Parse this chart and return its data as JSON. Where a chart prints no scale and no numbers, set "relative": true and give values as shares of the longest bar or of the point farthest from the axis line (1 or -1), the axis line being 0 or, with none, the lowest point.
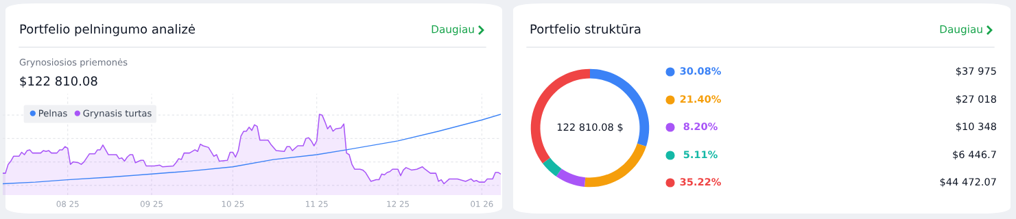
{
  "chart_data": [
    {
      "type": "line",
      "title": "Portfelio pelningumo analizė",
      "subtitle": "Grynosiosios priemonės",
      "annotations": [
        "$122 810.08",
        "Daugiau"
      ],
      "relative": true,
      "xlim": [
        "2025-07-08",
        "2026-01-08"
      ],
      "xticks": [
        {
          "value": "2025-08-01",
          "label": "08 25"
        },
        {
          "value": "2025-09-01",
          "label": "09 25"
        },
        {
          "value": "2025-10-01",
          "label": "10 25"
        },
        {
          "value": "2025-11-01",
          "label": "11 25"
        },
        {
          "value": "2025-12-01",
          "label": "12 25"
        },
        {
          "value": "2026-01-01",
          "label": "01 26"
        }
      ],
      "grid": true,
      "legend": "top left",
      "series": [
        {
          "name": "Pelnas",
          "color": "#3b82f6",
          "type": "line",
          "x": [
            "2025-07-08",
            "2025-07-20",
            "2025-08-01",
            "2025-08-16",
            "2025-09-01",
            "2025-09-16",
            "2025-10-01",
            "2025-10-16",
            "2025-11-01",
            "2025-11-12",
            "2025-12-01",
            "2025-12-16",
            "2026-01-01",
            "2026-01-08"
          ],
          "values": [
            0.14,
            0.16,
            0.19,
            0.22,
            0.26,
            0.3,
            0.35,
            0.44,
            0.5,
            0.56,
            0.67,
            0.79,
            0.93,
            1.0
          ]
        },
        {
          "name": "Grynasis turtas",
          "color": "#a855f7",
          "type": "area",
          "x": [
            "2025-07-08",
            "2025-07-09",
            "2025-07-10",
            "2025-07-11",
            "2025-07-12",
            "2025-07-14",
            "2025-07-15",
            "2025-07-16",
            "2025-07-17",
            "2025-07-18",
            "2025-07-19",
            "2025-07-22",
            "2025-07-23",
            "2025-07-24",
            "2025-07-25",
            "2025-07-26",
            "2025-07-28",
            "2025-07-29",
            "2025-07-30",
            "2025-07-31",
            "2025-08-01",
            "2025-08-02",
            "2025-08-03",
            "2025-08-05",
            "2025-08-06",
            "2025-08-07",
            "2025-08-09",
            "2025-08-11",
            "2025-08-12",
            "2025-08-13",
            "2025-08-14",
            "2025-08-16",
            "2025-08-19",
            "2025-08-20",
            "2025-08-21",
            "2025-08-22",
            "2025-08-23",
            "2025-08-24",
            "2025-08-25",
            "2025-08-26",
            "2025-08-28",
            "2025-08-29",
            "2025-08-30",
            "2025-09-02",
            "2025-09-04",
            "2025-09-05",
            "2025-09-09",
            "2025-09-10",
            "2025-09-11",
            "2025-09-12",
            "2025-09-13",
            "2025-09-15",
            "2025-09-17",
            "2025-09-18",
            "2025-09-19",
            "2025-09-20",
            "2025-09-22",
            "2025-09-24",
            "2025-09-25",
            "2025-09-26",
            "2025-09-29",
            "2025-09-30",
            "2025-10-01",
            "2025-10-02",
            "2025-10-03",
            "2025-10-04",
            "2025-10-05",
            "2025-10-06",
            "2025-10-07",
            "2025-10-08",
            "2025-10-09",
            "2025-10-10",
            "2025-10-11",
            "2025-10-14",
            "2025-10-15",
            "2025-10-17",
            "2025-10-20",
            "2025-10-21",
            "2025-10-22",
            "2025-10-23",
            "2025-10-25",
            "2025-10-27",
            "2025-10-28",
            "2025-10-29",
            "2025-10-30",
            "2025-10-31",
            "2025-11-01",
            "2025-11-02",
            "2025-11-03",
            "2025-11-04",
            "2025-11-05",
            "2025-11-06",
            "2025-11-07",
            "2025-11-08",
            "2025-11-10",
            "2025-11-11",
            "2025-11-12",
            "2025-11-13",
            "2025-11-14",
            "2025-11-15",
            "2025-11-17",
            "2025-11-18",
            "2025-11-19",
            "2025-11-21",
            "2025-11-23",
            "2025-11-24",
            "2025-11-25",
            "2025-11-26",
            "2025-11-27",
            "2025-11-28",
            "2025-11-29",
            "2025-12-01",
            "2025-12-02",
            "2025-12-03",
            "2025-12-04",
            "2025-12-06",
            "2025-12-08",
            "2025-12-10",
            "2025-12-11",
            "2025-12-13",
            "2025-12-15",
            "2025-12-16",
            "2025-12-17",
            "2025-12-18",
            "2025-12-20",
            "2025-12-23",
            "2025-12-26",
            "2025-12-28",
            "2025-12-29",
            "2025-12-30",
            "2025-12-31",
            "2026-01-02",
            "2026-01-03",
            "2026-01-05",
            "2026-01-06",
            "2026-01-07",
            "2026-01-08"
          ],
          "values": [
            0.27,
            0.27,
            0.38,
            0.42,
            0.48,
            0.48,
            0.53,
            0.5,
            0.55,
            0.56,
            0.52,
            0.52,
            0.55,
            0.54,
            0.55,
            0.52,
            0.52,
            0.56,
            0.56,
            0.6,
            0.58,
            0.38,
            0.41,
            0.4,
            0.38,
            0.41,
            0.51,
            0.51,
            0.56,
            0.56,
            0.62,
            0.5,
            0.5,
            0.45,
            0.46,
            0.42,
            0.47,
            0.5,
            0.5,
            0.4,
            0.43,
            0.43,
            0.36,
            0.36,
            0.37,
            0.35,
            0.36,
            0.4,
            0.45,
            0.44,
            0.52,
            0.52,
            0.56,
            0.54,
            0.63,
            0.61,
            0.59,
            0.48,
            0.5,
            0.42,
            0.43,
            0.53,
            0.53,
            0.47,
            0.55,
            0.73,
            0.79,
            0.79,
            0.84,
            0.8,
            0.87,
            0.85,
            0.68,
            0.68,
            0.63,
            0.55,
            0.54,
            0.6,
            0.6,
            0.55,
            0.61,
            0.61,
            0.7,
            0.71,
            0.67,
            0.61,
            0.67,
            1.0,
            0.99,
            0.91,
            0.82,
            0.86,
            0.79,
            0.82,
            0.83,
            0.88,
            0.52,
            0.5,
            0.38,
            0.32,
            0.32,
            0.31,
            0.28,
            0.17,
            0.19,
            0.19,
            0.26,
            0.25,
            0.28,
            0.29,
            0.32,
            0.32,
            0.24,
            0.31,
            0.34,
            0.31,
            0.32,
            0.35,
            0.32,
            0.27,
            0.27,
            0.17,
            0.19,
            0.14,
            0.2,
            0.2,
            0.17,
            0.2,
            0.17,
            0.18,
            0.16,
            0.16,
            0.2,
            0.2,
            0.28,
            0.28,
            0.26
          ]
        }
      ]
    },
    {
      "type": "donut",
      "title": "Portfelio struktūra",
      "categories": [
        null,
        null,
        null,
        null,
        null
      ],
      "values": [
        30.08,
        21.4,
        8.2,
        5.11,
        35.22
      ],
      "colors": [
        "#3b82f6",
        "#f59e0b",
        "#a855f7",
        "#14b8a6",
        "#ef4444"
      ],
      "annotations": [
        "Daugiau",
        "122 810.08 $",
        "30.08%",
        "21.40%",
        "8.20%",
        "5.11%",
        "35.22%",
        "$37 975",
        "$27 018",
        "$10 348",
        "$6 446.7",
        "$44 472.07"
      ]
    }
  ]
}
